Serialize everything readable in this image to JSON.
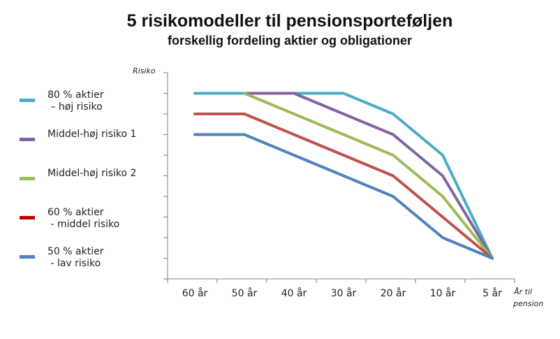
{
  "chart_data": {
    "type": "line",
    "title": "5 risikomodeller til pensionsporteføljen",
    "subtitle": "forskellig fordeling aktier og obligationer",
    "ylabel": "Risiko",
    "xlabel": "År til pension",
    "categories": [
      "60 år",
      "50 år",
      "40 år",
      "30 år",
      "20 år",
      "10 år",
      "5 år"
    ],
    "ylim": [
      0,
      10
    ],
    "y_tick_count": 11,
    "y_tick_labels": false,
    "grid": false,
    "legend_position": "left",
    "series": [
      {
        "name": "80 % aktier\n – høj risiko",
        "color": "#4bacc6",
        "values": [
          9,
          9,
          9,
          9,
          8,
          6,
          1
        ]
      },
      {
        "name": "Middel-høj risiko 1",
        "color": "#8064a2",
        "values": [
          null,
          9,
          9,
          8,
          7,
          5,
          1
        ]
      },
      {
        "name": "Middel-høj risiko 2",
        "color": "#9bbb59",
        "values": [
          null,
          9,
          8,
          7,
          6,
          4,
          1
        ]
      },
      {
        "name": "60 % aktier\n - middel risiko",
        "color": "#c0504d",
        "values": [
          8,
          8,
          7,
          6,
          5,
          3,
          1
        ]
      },
      {
        "name": "50 % aktier\n - lav risiko",
        "color": "#4f81bd",
        "values": [
          7,
          7,
          6,
          5,
          4,
          2,
          1
        ]
      }
    ],
    "legend_swatch_colors": [
      "#4bacc6",
      "#8064a2",
      "#9bbb59",
      "#c00000",
      "#4f81bd"
    ]
  }
}
